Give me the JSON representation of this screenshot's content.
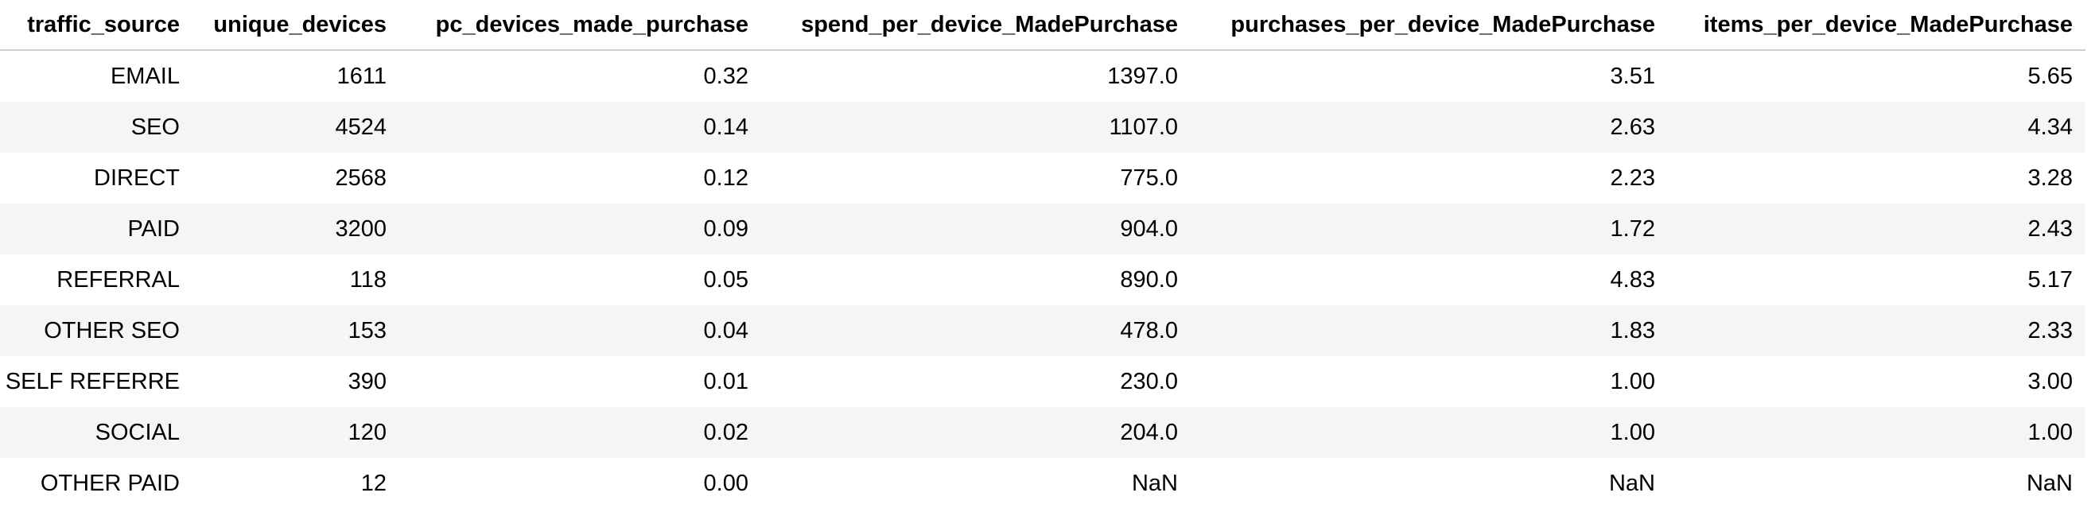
{
  "table": {
    "columns": [
      "traffic_source",
      "unique_devices",
      "pc_devices_made_purchase",
      "spend_per_device_MadePurchase",
      "purchases_per_device_MadePurchase",
      "items_per_device_MadePurchase"
    ],
    "rows": [
      [
        "EMAIL",
        "1611",
        "0.32",
        "1397.0",
        "3.51",
        "5.65"
      ],
      [
        "SEO",
        "4524",
        "0.14",
        "1107.0",
        "2.63",
        "4.34"
      ],
      [
        "DIRECT",
        "2568",
        "0.12",
        "775.0",
        "2.23",
        "3.28"
      ],
      [
        "PAID",
        "3200",
        "0.09",
        "904.0",
        "1.72",
        "2.43"
      ],
      [
        "REFERRAL",
        "118",
        "0.05",
        "890.0",
        "4.83",
        "5.17"
      ],
      [
        "OTHER SEO",
        "153",
        "0.04",
        "478.0",
        "1.83",
        "2.33"
      ],
      [
        "SELF REFERRE",
        "390",
        "0.01",
        "230.0",
        "1.00",
        "3.00"
      ],
      [
        "SOCIAL",
        "120",
        "0.02",
        "204.0",
        "1.00",
        "1.00"
      ],
      [
        "OTHER PAID",
        "12",
        "0.00",
        "NaN",
        "NaN",
        "NaN"
      ]
    ]
  },
  "colors": {
    "stripe": "#f5f5f5",
    "header_rule": "#cfcfcf",
    "text": "#000000"
  }
}
